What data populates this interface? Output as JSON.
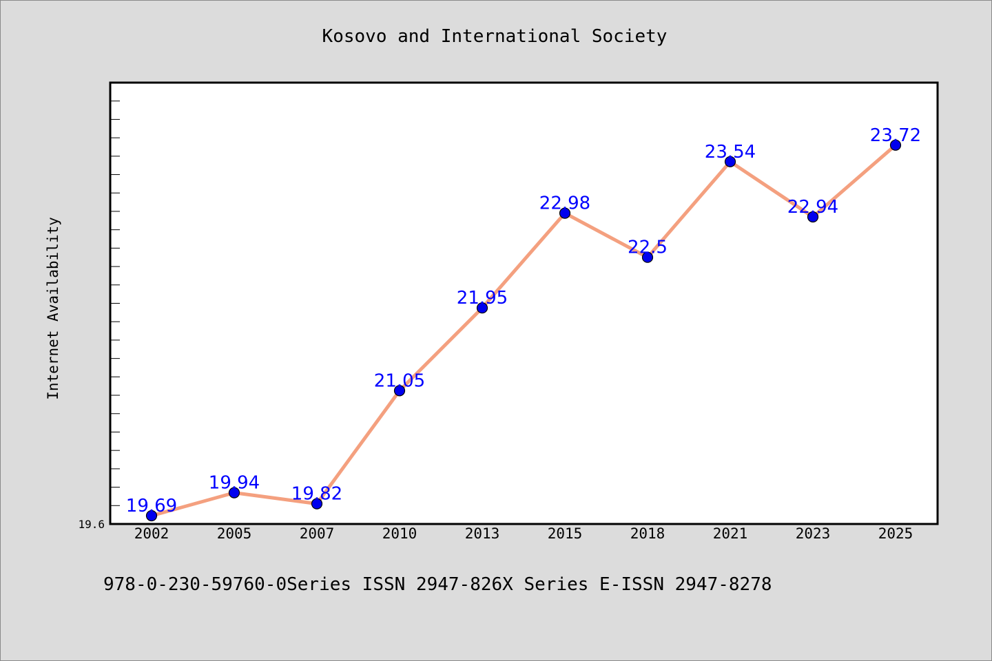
{
  "chart_data": {
    "type": "line",
    "title": "Kosovo and International Society",
    "xlabel": "",
    "ylabel": "Internet Availability",
    "categories": [
      "2002",
      "2005",
      "2007",
      "2010",
      "2013",
      "2015",
      "2018",
      "2021",
      "2023",
      "2025"
    ],
    "series": [
      {
        "values": [
          19.69,
          19.94,
          19.82,
          21.05,
          21.95,
          22.98,
          22.5,
          23.54,
          22.94,
          23.72
        ],
        "data_labels": [
          "19.69",
          "19.94",
          "19.82",
          "21.05",
          "21.95",
          "22.98",
          "22.5",
          "23.54",
          "22.94",
          "23.72"
        ]
      }
    ],
    "ylim": [
      19.6,
      24.4
    ],
    "ytick_labels": [
      "19.6"
    ],
    "grid": false,
    "legend": "none",
    "colors": {
      "line": "#f4a07f",
      "marker": "#0000ee",
      "data_label": "#0000ff",
      "background": "#dcdcdc",
      "plot_background": "#ffffff"
    }
  },
  "footnote": "978-0-230-59760-0Series ISSN 2947-826X Series E-ISSN 2947-8278"
}
